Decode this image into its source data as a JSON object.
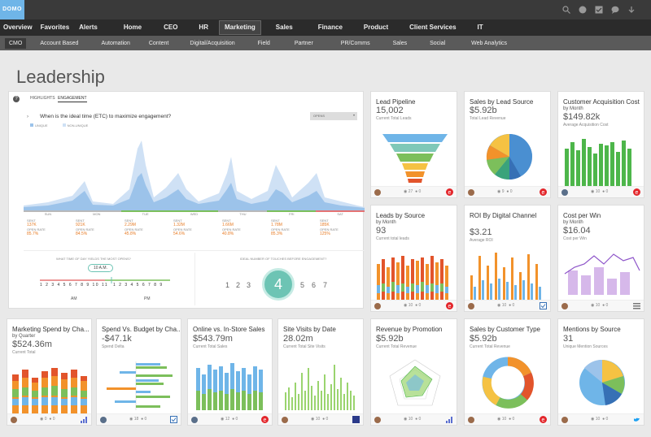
{
  "brand": {
    "logo": "DOMO"
  },
  "top_icons": [
    "search-icon",
    "globe-icon",
    "checkbox-icon",
    "chat-icon",
    "download-icon"
  ],
  "nav_primary": [
    "Overview",
    "Favorites",
    "Alerts",
    "Home",
    "CEO",
    "HR",
    "Marketing",
    "Sales",
    "Finance",
    "Product",
    "Client Services",
    "IT"
  ],
  "nav_secondary": [
    "CMO",
    "Account Based",
    "Automation",
    "Content",
    "Digital/Acquisition",
    "Field",
    "Partner",
    "PR/Comms",
    "Sales",
    "Social",
    "Web Analytics"
  ],
  "page_title": "Leadership",
  "engagement": {
    "tabs": [
      "HIGHLIGHTS",
      "ENGAGEMENT"
    ],
    "question": "When is the ideal time (ETC) to maximize engagement?",
    "select_value": "OPENS",
    "legend": [
      "UNIQUE",
      "NON-UNIQUE"
    ],
    "days": [
      "SUN",
      "MON",
      "TUE",
      "WED",
      "THU",
      "FRI",
      "SAT"
    ],
    "metrics": [
      {
        "sent": "137K",
        "open": "85.7%"
      },
      {
        "sent": "921K",
        "open": "84.5%"
      },
      {
        "sent": "2.29M",
        "open": "45.8%"
      },
      {
        "sent": "1.32M",
        "open": "54.6%"
      },
      {
        "sent": "1.66M",
        "open": "40.8%"
      },
      {
        "sent": "1.78M",
        "open": "85.3%"
      },
      {
        "sent": "185K",
        "open": "125%"
      }
    ],
    "sent_label": "SENT",
    "open_label": "OPEN RATE",
    "time_q": "WHAT TIME OF DAY YIELDS THE MOST OPENS?",
    "time_badge": "10 A.M.",
    "am": "AM",
    "pm": "PM",
    "touches_q": "IDEAL NUMBER OF TOUCHES BEFORE ENGAGEMENT?",
    "touches": [
      "1",
      "2",
      "3",
      "4",
      "5",
      "6",
      "7"
    ],
    "touch_selected": "4"
  },
  "cards": [
    {
      "title": "Lead Pipeline",
      "value": "15,002",
      "label": "Current Total Leads",
      "comments": "27",
      "likes": "0"
    },
    {
      "title": "Sales by Lead Source",
      "value": "$5.92b",
      "label": "Total Lead Revenue",
      "comments": "9",
      "likes": "0"
    },
    {
      "title": "Customer Acquisition Cost",
      "subtitle": "by Month",
      "value": "$149.82k",
      "label": "Average Acquisition Cost",
      "comments": "10",
      "likes": "0"
    },
    {
      "title": "Leads by Source",
      "subtitle": "by Month",
      "value": "93",
      "label": "Current total leads",
      "comments": "10",
      "likes": "0"
    },
    {
      "title": "ROI By Digital Channel",
      "value": "$3.21",
      "label": "Average ROI",
      "comments": "10",
      "likes": "0"
    },
    {
      "title": "Cost per Win",
      "subtitle": "by Month",
      "value": "$16.04",
      "label": "Cost per Win",
      "comments": "10",
      "likes": "0"
    },
    {
      "title": "Marketing Spend by Cha...",
      "subtitle": "by Quarter",
      "value": "$524.36m",
      "label": "Current Total",
      "comments": "0",
      "likes": "0"
    },
    {
      "title": "Spend Vs. Budget by Cha...",
      "value": "-$47.1k",
      "label": "Spend Delta",
      "comments": "18",
      "likes": "0"
    },
    {
      "title": "Online vs. In-Store Sales",
      "value": "$543.79m",
      "label": "Current Total Sales",
      "comments": "12",
      "likes": "0"
    },
    {
      "title": "Site Visits by Date",
      "value": "28.02m",
      "label": "Current Total Site Visits",
      "comments": "10",
      "likes": "0"
    },
    {
      "title": "Revenue by Promotion",
      "value": "$5.92b",
      "label": "Current Total Revenue",
      "comments": "10",
      "likes": "0"
    },
    {
      "title": "Sales by Customer Type",
      "value": "$5.92b",
      "label": "Current Total Revenue",
      "comments": "10",
      "likes": "0"
    },
    {
      "title": "Mentions by Source",
      "value": "31",
      "label": "Unique Mention Sources",
      "comments": "10",
      "likes": "0"
    }
  ]
}
